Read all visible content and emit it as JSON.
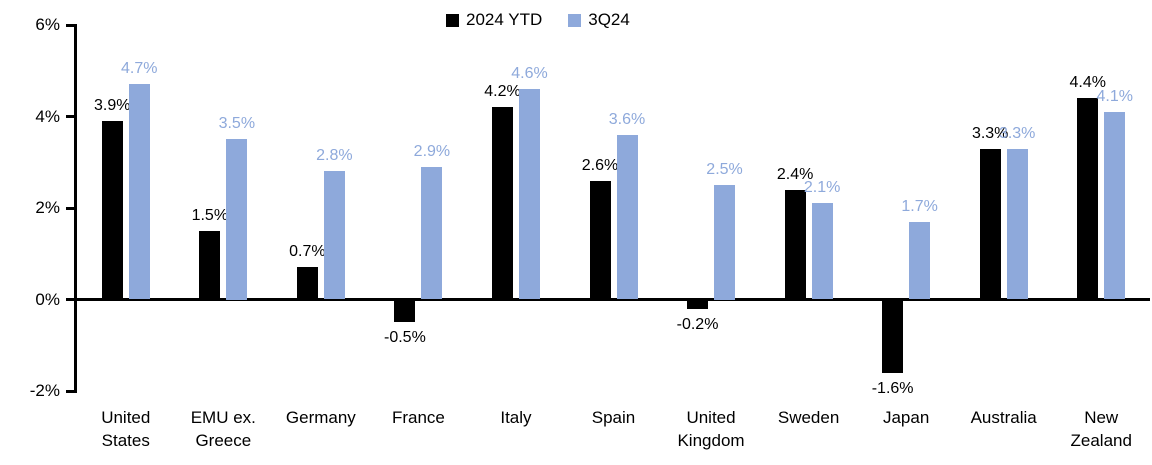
{
  "chart_data": {
    "type": "bar",
    "title": "",
    "xlabel": "",
    "ylabel": "",
    "categories": [
      "United\nStates",
      "EMU ex.\nGreece",
      "Germany",
      "France",
      "Italy",
      "Spain",
      "United\nKingdom",
      "Sweden",
      "Japan",
      "Australia",
      "New\nZealand"
    ],
    "series": [
      {
        "name": "2024 YTD",
        "color": "#000000",
        "values": [
          3.9,
          1.5,
          0.7,
          -0.5,
          4.2,
          2.6,
          -0.2,
          2.4,
          -1.6,
          3.3,
          4.4
        ]
      },
      {
        "name": "3Q24",
        "color": "#8EA9DB",
        "values": [
          4.7,
          3.5,
          2.8,
          2.9,
          4.6,
          3.6,
          2.5,
          2.1,
          1.7,
          3.3,
          4.1
        ]
      }
    ],
    "value_label_suffix": "%",
    "y_axis": {
      "min": -2,
      "max": 6,
      "step": 2,
      "tick_labels": [
        "6%",
        "4%",
        "2%",
        "0%",
        "-2%"
      ]
    },
    "legend_position": "top",
    "grid": false
  }
}
